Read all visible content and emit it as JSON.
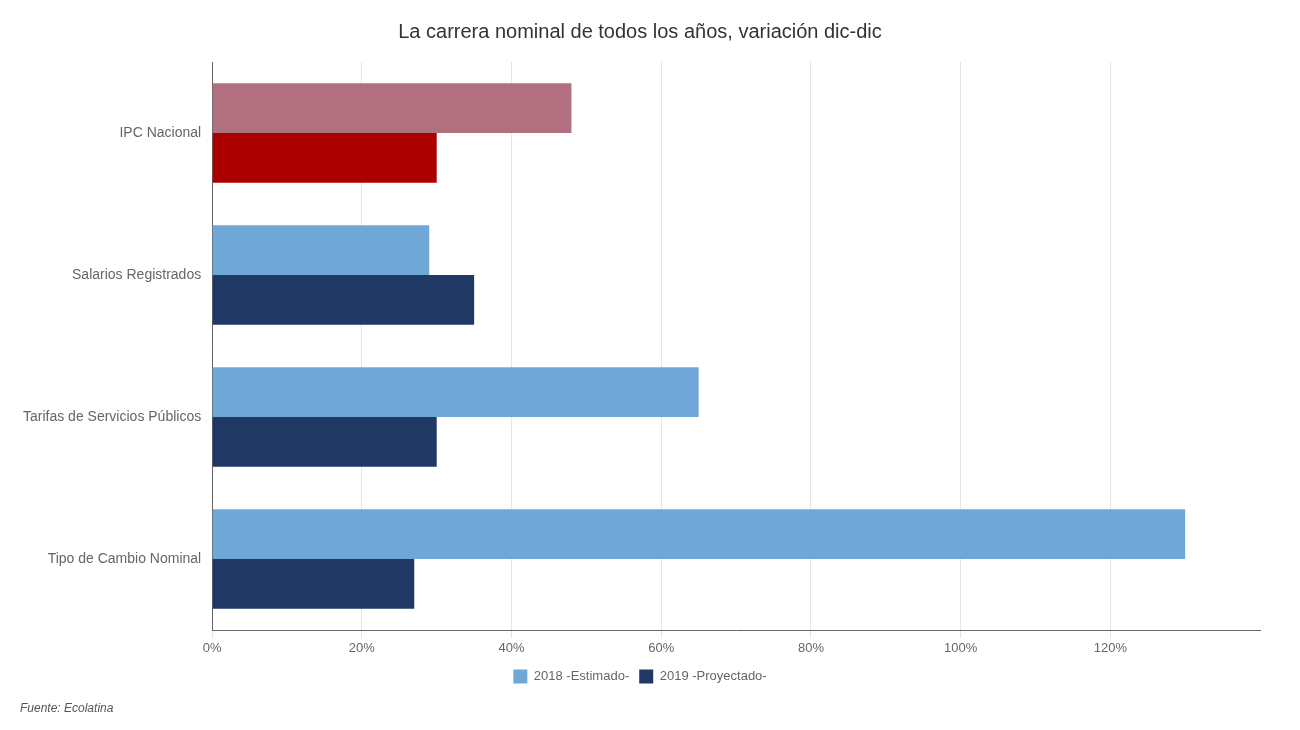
{
  "chart_data": {
    "type": "bar",
    "orientation": "horizontal",
    "title": "La carrera nominal de todos los años, variación dic-dic",
    "annotations": [
      "Fuente: Ecolatina"
    ],
    "categories": [
      "Tipo de Cambio Nominal",
      "Tarifas de Servicios Públicos",
      "Salarios Registrados",
      "IPC Nacional"
    ],
    "series": [
      {
        "name": "2019 -Proyectado-",
        "colors": [
          "#1f3864",
          "#1f3864",
          "#1f3864",
          "#aa0000"
        ],
        "values": [
          27,
          30,
          35,
          30
        ]
      },
      {
        "name": "2018 -Estimado-",
        "colors": [
          "#6fa8d6",
          "#6fa8d6",
          "#6fa8d6",
          "#b07080"
        ],
        "values": [
          130,
          65,
          29,
          48
        ]
      }
    ],
    "xlim": [
      0,
      140
    ],
    "xticks": [
      {
        "value": 0,
        "label": "0%"
      },
      {
        "value": 20,
        "label": "20%"
      },
      {
        "value": 40,
        "label": "40%"
      },
      {
        "value": 60,
        "label": "60%"
      },
      {
        "value": 80,
        "label": "80%"
      },
      {
        "value": 100,
        "label": "100%"
      },
      {
        "value": 120,
        "label": "120%"
      }
    ],
    "grid": true,
    "legend": "bottom"
  }
}
